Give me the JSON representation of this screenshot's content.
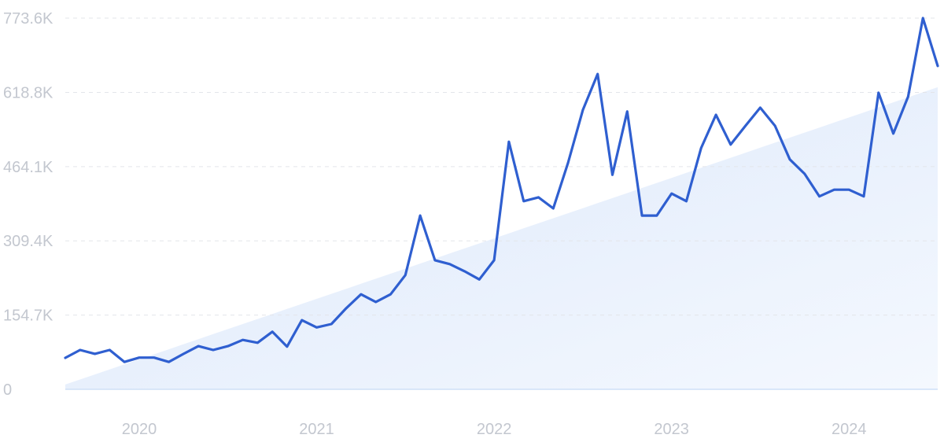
{
  "chart_data": {
    "type": "line",
    "categories": [
      null,
      null,
      null,
      null,
      null,
      "2020",
      null,
      null,
      null,
      null,
      null,
      null,
      null,
      null,
      null,
      null,
      null,
      "2021",
      null,
      null,
      null,
      null,
      null,
      null,
      null,
      null,
      null,
      null,
      null,
      "2022",
      null,
      null,
      null,
      null,
      null,
      null,
      null,
      null,
      null,
      null,
      null,
      "2023",
      null,
      null,
      null,
      null,
      null,
      null,
      null,
      null,
      null,
      null,
      null,
      "2024",
      null,
      null,
      null,
      null,
      null,
      null
    ],
    "series": [
      {
        "type": "area",
        "color": "#dce8fb",
        "values": [
          10000,
          20500,
          31000,
          41500,
          52000,
          62500,
          73000,
          83500,
          94000,
          104500,
          115000,
          125500,
          136000,
          146500,
          157000,
          167500,
          178000,
          188500,
          199000,
          209500,
          220000,
          230500,
          241000,
          251500,
          262000,
          272500,
          283000,
          293500,
          304000,
          314500,
          325000,
          335500,
          346000,
          356500,
          367000,
          377500,
          388000,
          398500,
          409000,
          419500,
          430000,
          440500,
          451000,
          461500,
          472000,
          482500,
          493000,
          503500,
          514000,
          524500,
          535000,
          545500,
          556000,
          566500,
          577000,
          587500,
          598000,
          608500,
          619000,
          629500
        ]
      },
      {
        "type": "line",
        "color": "#2f5fd0",
        "values": [
          65600,
          82000,
          74000,
          82000,
          57000,
          66000,
          66000,
          57000,
          74000,
          90000,
          82000,
          90000,
          103000,
          97000,
          120000,
          89000,
          144000,
          129000,
          136000,
          169000,
          198000,
          182000,
          198000,
          238000,
          362000,
          269000,
          261000,
          246000,
          229000,
          269000,
          516000,
          392000,
          400000,
          377000,
          472000,
          582000,
          657000,
          447000,
          579000,
          362000,
          362000,
          408000,
          392000,
          503000,
          572000,
          510000,
          549000,
          587000,
          549000,
          479000,
          449000,
          402000,
          416000,
          416000,
          402000,
          618000,
          533000,
          610000,
          773600,
          674000
        ]
      }
    ],
    "ylim": [
      0,
      773600
    ],
    "yticks": [
      0,
      {
        "value": 154700,
        "label": "154.7K"
      },
      {
        "value": 309400,
        "label": "309.4K"
      },
      {
        "value": 464100,
        "label": "464.1K"
      },
      {
        "value": 618800,
        "label": "618.8K"
      },
      {
        "value": 773600,
        "label": "773.6K"
      }
    ],
    "grid": true
  }
}
